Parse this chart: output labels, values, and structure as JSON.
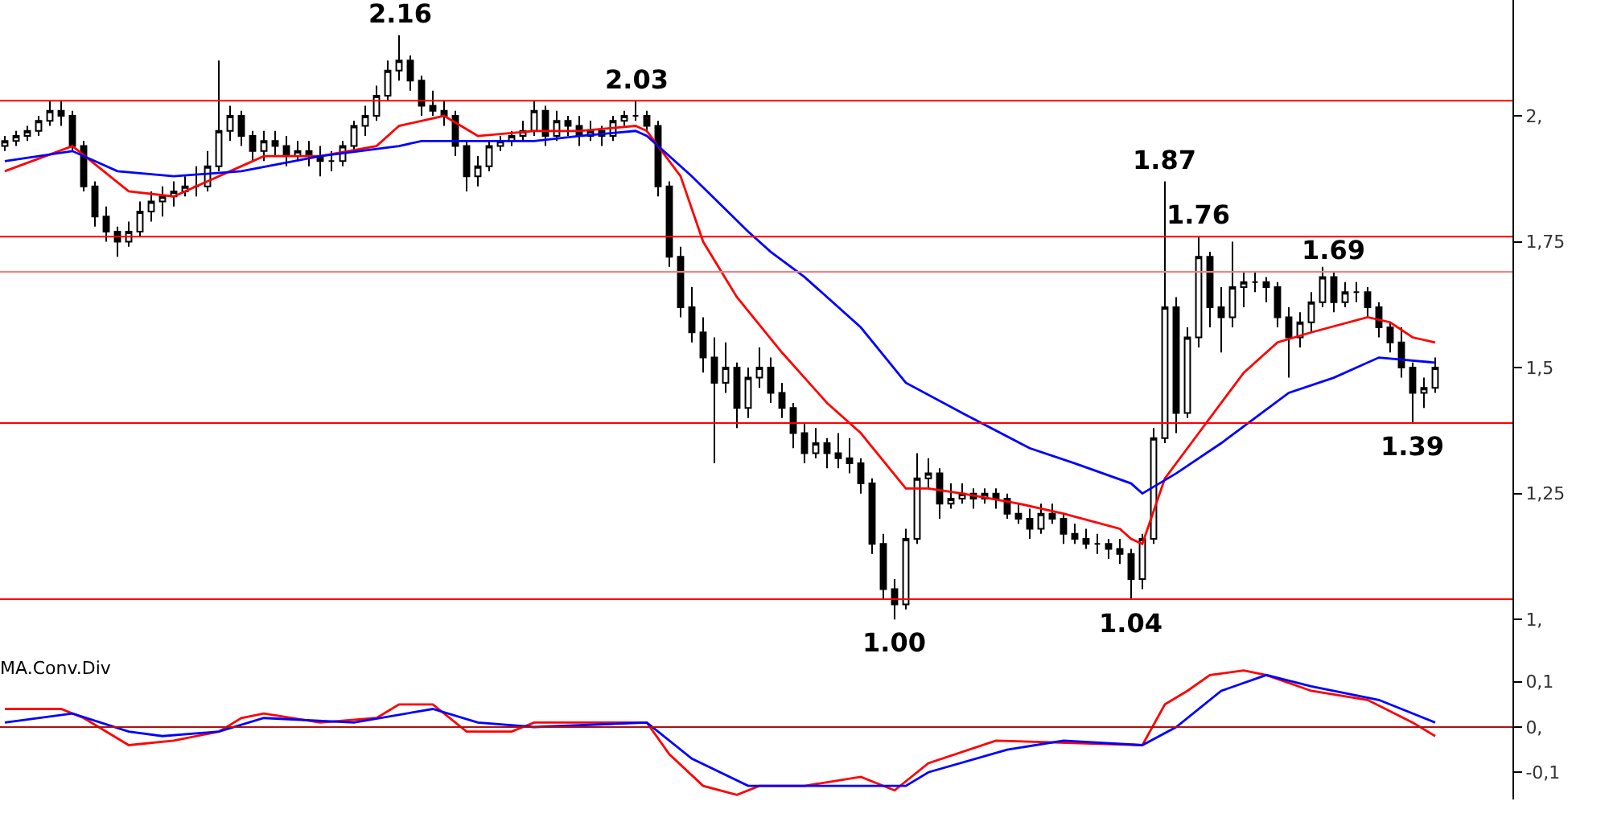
{
  "chart_data": [
    {
      "type": "candlestick",
      "tick_labels": "y",
      "categories": [
        null,
        null,
        null,
        null,
        null,
        null,
        null,
        null,
        null,
        null,
        null,
        null,
        null,
        null,
        null,
        null,
        null,
        null,
        null,
        null,
        null,
        null,
        null,
        null,
        null,
        null,
        null,
        null,
        null,
        null,
        null,
        null,
        null,
        null,
        null,
        null,
        null,
        null,
        null,
        null,
        null,
        null,
        null,
        null,
        null,
        null,
        null,
        null,
        null,
        null,
        null,
        null,
        null,
        null,
        null,
        null,
        null,
        null,
        null,
        null,
        null,
        null,
        null,
        null,
        null,
        null,
        null,
        null,
        null,
        null,
        null,
        null,
        null,
        null,
        null,
        null,
        null,
        null,
        null,
        null,
        null,
        null,
        null,
        null,
        null,
        null,
        null,
        null,
        null,
        null,
        null,
        null,
        null,
        null,
        null,
        null,
        null,
        null,
        null,
        null,
        null,
        null,
        null,
        null,
        null,
        null,
        null,
        null,
        null,
        null,
        null,
        null,
        null,
        null,
        null,
        null,
        null,
        null,
        null,
        null,
        null,
        null,
        null,
        null,
        null,
        null,
        null,
        null
      ],
      "ohlc": [
        [
          1.94,
          1.96,
          1.93,
          1.95
        ],
        [
          1.95,
          1.97,
          1.94,
          1.96
        ],
        [
          1.96,
          1.98,
          1.95,
          1.97
        ],
        [
          1.97,
          2.0,
          1.96,
          1.99
        ],
        [
          1.99,
          2.03,
          1.98,
          2.01
        ],
        [
          2.01,
          2.03,
          1.98,
          2.0
        ],
        [
          2.0,
          2.01,
          1.93,
          1.94
        ],
        [
          1.94,
          1.95,
          1.85,
          1.86
        ],
        [
          1.86,
          1.87,
          1.78,
          1.8
        ],
        [
          1.8,
          1.82,
          1.75,
          1.77
        ],
        [
          1.77,
          1.78,
          1.72,
          1.75
        ],
        [
          1.75,
          1.79,
          1.74,
          1.77
        ],
        [
          1.77,
          1.83,
          1.76,
          1.81
        ],
        [
          1.81,
          1.85,
          1.79,
          1.83
        ],
        [
          1.83,
          1.86,
          1.8,
          1.84
        ],
        [
          1.84,
          1.87,
          1.82,
          1.85
        ],
        [
          1.85,
          1.88,
          1.84,
          1.86
        ],
        [
          1.86,
          1.9,
          1.84,
          1.86
        ],
        [
          1.86,
          1.93,
          1.85,
          1.9
        ],
        [
          1.9,
          2.11,
          1.89,
          1.97
        ],
        [
          1.97,
          2.02,
          1.95,
          2.0
        ],
        [
          2.0,
          2.01,
          1.94,
          1.96
        ],
        [
          1.96,
          1.97,
          1.91,
          1.93
        ],
        [
          1.93,
          1.97,
          1.91,
          1.95
        ],
        [
          1.95,
          1.97,
          1.92,
          1.94
        ],
        [
          1.94,
          1.96,
          1.9,
          1.92
        ],
        [
          1.92,
          1.95,
          1.91,
          1.93
        ],
        [
          1.93,
          1.95,
          1.9,
          1.92
        ],
        [
          1.92,
          1.94,
          1.88,
          1.91
        ],
        [
          1.91,
          1.93,
          1.89,
          1.91
        ],
        [
          1.91,
          1.95,
          1.9,
          1.94
        ],
        [
          1.94,
          1.99,
          1.93,
          1.98
        ],
        [
          1.98,
          2.02,
          1.96,
          2.0
        ],
        [
          2.0,
          2.06,
          1.99,
          2.04
        ],
        [
          2.04,
          2.11,
          2.03,
          2.09
        ],
        [
          2.09,
          2.16,
          2.07,
          2.11
        ],
        [
          2.11,
          2.12,
          2.05,
          2.07
        ],
        [
          2.07,
          2.08,
          2.0,
          2.02
        ],
        [
          2.02,
          2.05,
          2.0,
          2.01
        ],
        [
          2.01,
          2.03,
          1.98,
          2.0
        ],
        [
          2.0,
          2.01,
          1.92,
          1.94
        ],
        [
          1.94,
          1.95,
          1.85,
          1.88
        ],
        [
          1.88,
          1.92,
          1.86,
          1.9
        ],
        [
          1.9,
          1.95,
          1.89,
          1.94
        ],
        [
          1.94,
          1.96,
          1.93,
          1.95
        ],
        [
          1.95,
          1.97,
          1.94,
          1.96
        ],
        [
          1.96,
          1.99,
          1.95,
          1.97
        ],
        [
          1.97,
          2.03,
          1.96,
          2.01
        ],
        [
          2.01,
          2.02,
          1.94,
          1.96
        ],
        [
          1.96,
          2.01,
          1.95,
          1.99
        ],
        [
          1.99,
          2.0,
          1.96,
          1.98
        ],
        [
          1.98,
          2.0,
          1.94,
          1.96
        ],
        [
          1.96,
          1.99,
          1.95,
          1.97
        ],
        [
          1.97,
          1.98,
          1.94,
          1.96
        ],
        [
          1.96,
          2.0,
          1.95,
          1.99
        ],
        [
          1.99,
          2.01,
          1.98,
          2.0
        ],
        [
          2.0,
          2.03,
          1.99,
          2.0
        ],
        [
          2.0,
          2.01,
          1.97,
          1.98
        ],
        [
          1.98,
          1.99,
          1.84,
          1.86
        ],
        [
          1.86,
          1.87,
          1.7,
          1.72
        ],
        [
          1.72,
          1.74,
          1.6,
          1.62
        ],
        [
          1.62,
          1.66,
          1.55,
          1.57
        ],
        [
          1.57,
          1.6,
          1.49,
          1.52
        ],
        [
          1.52,
          1.56,
          1.31,
          1.47
        ],
        [
          1.47,
          1.55,
          1.45,
          1.5
        ],
        [
          1.5,
          1.51,
          1.38,
          1.42
        ],
        [
          1.42,
          1.5,
          1.4,
          1.48
        ],
        [
          1.48,
          1.54,
          1.46,
          1.5
        ],
        [
          1.5,
          1.52,
          1.43,
          1.45
        ],
        [
          1.45,
          1.47,
          1.4,
          1.42
        ],
        [
          1.42,
          1.43,
          1.34,
          1.37
        ],
        [
          1.37,
          1.39,
          1.31,
          1.33
        ],
        [
          1.33,
          1.38,
          1.32,
          1.35
        ],
        [
          1.35,
          1.36,
          1.3,
          1.33
        ],
        [
          1.33,
          1.37,
          1.3,
          1.32
        ],
        [
          1.32,
          1.36,
          1.29,
          1.31
        ],
        [
          1.31,
          1.32,
          1.25,
          1.27
        ],
        [
          1.27,
          1.28,
          1.13,
          1.15
        ],
        [
          1.15,
          1.17,
          1.04,
          1.06
        ],
        [
          1.06,
          1.08,
          1.0,
          1.03
        ],
        [
          1.03,
          1.18,
          1.02,
          1.16
        ],
        [
          1.16,
          1.33,
          1.15,
          1.28
        ],
        [
          1.28,
          1.32,
          1.26,
          1.29
        ],
        [
          1.29,
          1.3,
          1.2,
          1.23
        ],
        [
          1.23,
          1.27,
          1.22,
          1.24
        ],
        [
          1.24,
          1.27,
          1.23,
          1.25
        ],
        [
          1.25,
          1.26,
          1.22,
          1.24
        ],
        [
          1.24,
          1.26,
          1.23,
          1.25
        ],
        [
          1.25,
          1.26,
          1.22,
          1.24
        ],
        [
          1.24,
          1.25,
          1.2,
          1.21
        ],
        [
          1.21,
          1.23,
          1.19,
          1.2
        ],
        [
          1.2,
          1.22,
          1.16,
          1.18
        ],
        [
          1.18,
          1.23,
          1.17,
          1.21
        ],
        [
          1.21,
          1.23,
          1.19,
          1.2
        ],
        [
          1.2,
          1.21,
          1.15,
          1.17
        ],
        [
          1.17,
          1.19,
          1.15,
          1.16
        ],
        [
          1.16,
          1.18,
          1.14,
          1.15
        ],
        [
          1.15,
          1.17,
          1.13,
          1.15
        ],
        [
          1.15,
          1.16,
          1.12,
          1.14
        ],
        [
          1.14,
          1.16,
          1.11,
          1.13
        ],
        [
          1.13,
          1.14,
          1.04,
          1.08
        ],
        [
          1.08,
          1.17,
          1.06,
          1.16
        ],
        [
          1.16,
          1.38,
          1.15,
          1.36
        ],
        [
          1.36,
          1.87,
          1.35,
          1.62
        ],
        [
          1.62,
          1.64,
          1.37,
          1.41
        ],
        [
          1.41,
          1.58,
          1.4,
          1.56
        ],
        [
          1.56,
          1.76,
          1.54,
          1.72
        ],
        [
          1.72,
          1.73,
          1.58,
          1.62
        ],
        [
          1.62,
          1.66,
          1.53,
          1.6
        ],
        [
          1.6,
          1.75,
          1.58,
          1.66
        ],
        [
          1.66,
          1.69,
          1.62,
          1.67
        ],
        [
          1.67,
          1.69,
          1.65,
          1.67
        ],
        [
          1.67,
          1.68,
          1.63,
          1.66
        ],
        [
          1.66,
          1.67,
          1.58,
          1.6
        ],
        [
          1.6,
          1.62,
          1.48,
          1.56
        ],
        [
          1.56,
          1.61,
          1.54,
          1.59
        ],
        [
          1.59,
          1.65,
          1.57,
          1.63
        ],
        [
          1.63,
          1.7,
          1.62,
          1.68
        ],
        [
          1.68,
          1.69,
          1.61,
          1.63
        ],
        [
          1.63,
          1.67,
          1.62,
          1.65
        ],
        [
          1.65,
          1.67,
          1.63,
          1.65
        ],
        [
          1.65,
          1.66,
          1.6,
          1.62
        ],
        [
          1.62,
          1.63,
          1.56,
          1.58
        ],
        [
          1.58,
          1.59,
          1.53,
          1.55
        ],
        [
          1.55,
          1.58,
          1.48,
          1.5
        ],
        [
          1.5,
          1.51,
          1.39,
          1.45
        ],
        [
          1.45,
          1.48,
          1.42,
          1.46
        ],
        [
          1.46,
          1.52,
          1.45,
          1.5
        ]
      ],
      "series": [
        {
          "type": "line",
          "color": "#ff0000",
          "values": [
            1.89,
            null,
            null,
            null,
            null,
            null,
            1.94,
            null,
            null,
            null,
            null,
            1.85,
            null,
            null,
            null,
            1.84,
            null,
            null,
            null,
            null,
            1.89,
            null,
            null,
            1.92,
            null,
            null,
            null,
            null,
            1.92,
            null,
            null,
            null,
            null,
            1.94,
            null,
            1.98,
            null,
            null,
            null,
            2.0,
            null,
            null,
            1.96,
            null,
            null,
            null,
            null,
            1.97,
            null,
            null,
            null,
            1.97,
            null,
            null,
            null,
            null,
            1.98,
            1.97,
            null,
            null,
            1.88,
            null,
            1.75,
            null,
            null,
            1.64,
            null,
            null,
            null,
            1.53,
            null,
            null,
            null,
            1.43,
            null,
            null,
            1.37,
            null,
            null,
            null,
            1.26,
            null,
            1.26,
            null,
            null,
            1.25,
            null,
            null,
            null,
            null,
            1.23,
            null,
            null,
            null,
            1.21,
            null,
            null,
            null,
            null,
            1.18,
            1.16,
            1.15,
            null,
            1.28,
            null,
            null,
            1.37,
            null,
            null,
            null,
            1.49,
            null,
            null,
            1.55,
            null,
            null,
            1.57,
            null,
            null,
            null,
            null,
            1.6,
            null,
            1.59,
            null,
            1.56,
            null,
            1.55
          ]
        },
        {
          "type": "line",
          "color": "#0000ff",
          "values": [
            1.91,
            null,
            null,
            null,
            null,
            null,
            1.93,
            null,
            null,
            null,
            1.89,
            null,
            null,
            null,
            null,
            1.88,
            null,
            null,
            null,
            null,
            null,
            1.89,
            null,
            null,
            null,
            null,
            null,
            null,
            1.92,
            null,
            null,
            null,
            null,
            null,
            null,
            1.94,
            null,
            1.95,
            null,
            null,
            null,
            null,
            1.95,
            null,
            null,
            null,
            null,
            1.95,
            null,
            null,
            null,
            1.96,
            null,
            null,
            null,
            null,
            1.97,
            1.96,
            null,
            null,
            null,
            1.88,
            null,
            null,
            null,
            null,
            1.77,
            null,
            1.73,
            null,
            null,
            1.68,
            null,
            null,
            null,
            null,
            1.58,
            null,
            null,
            null,
            1.47,
            null,
            null,
            null,
            null,
            1.41,
            null,
            null,
            null,
            null,
            null,
            1.34,
            null,
            null,
            null,
            1.31,
            null,
            null,
            null,
            null,
            1.27,
            1.25,
            null,
            null,
            1.29,
            null,
            null,
            null,
            1.35,
            null,
            null,
            null,
            null,
            null,
            1.45,
            null,
            null,
            null,
            1.48,
            null,
            null,
            null,
            1.52,
            null,
            null,
            null,
            null,
            1.51
          ]
        }
      ],
      "ylim": [
        0.93,
        2.23
      ],
      "yticks": [
        {
          "value": 1,
          "label": "1,"
        },
        {
          "value": 1.25,
          "label": "1,25"
        },
        {
          "value": 1.5,
          "label": "1,5"
        },
        {
          "value": 1.75,
          "label": "1,75"
        },
        {
          "value": 2,
          "label": "2,"
        }
      ],
      "ref_lines": [
        {
          "axis": "y",
          "value": 2.03,
          "label": "2.03",
          "color": "#ff0000"
        },
        {
          "axis": "y",
          "value": 1.76,
          "label": "1.76",
          "color": "#ff0000"
        },
        {
          "axis": "y",
          "value": 1.69,
          "label": "1.69",
          "color": "#f08080"
        },
        {
          "axis": "y",
          "value": 1.39,
          "label": "1.39",
          "color": "#ff0000"
        },
        {
          "axis": "y",
          "value": 1.04,
          "label": "1.04",
          "color": "#ff0000"
        }
      ],
      "annotations": [
        {
          "text": "2.16",
          "y": 2.16
        },
        {
          "text": "1.87",
          "y": 1.87
        },
        {
          "text": "1.00",
          "y": 1.0
        }
      ]
    },
    {
      "type": "line",
      "title": "MA.Conv.Div",
      "tick_labels": "y",
      "categories": [
        null,
        null,
        null,
        null,
        null,
        null,
        null,
        null,
        null,
        null,
        null,
        null,
        null,
        null,
        null,
        null,
        null,
        null,
        null,
        null,
        null,
        null,
        null,
        null,
        null,
        null,
        null,
        null,
        null,
        null,
        null,
        null,
        null,
        null,
        null,
        null,
        null,
        null,
        null,
        null,
        null,
        null,
        null,
        null,
        null,
        null,
        null,
        null,
        null,
        null,
        null,
        null,
        null,
        null,
        null,
        null,
        null,
        null,
        null,
        null,
        null,
        null,
        null,
        null,
        null,
        null,
        null,
        null,
        null,
        null,
        null,
        null,
        null,
        null,
        null,
        null,
        null,
        null,
        null,
        null,
        null,
        null,
        null,
        null,
        null,
        null,
        null,
        null,
        null,
        null,
        null,
        null,
        null,
        null,
        null,
        null,
        null,
        null,
        null,
        null,
        null,
        null,
        null,
        null,
        null,
        null,
        null,
        null,
        null,
        null,
        null,
        null,
        null,
        null,
        null,
        null,
        null,
        null,
        null,
        null,
        null,
        null,
        null,
        null,
        null,
        null,
        null,
        null
      ],
      "series": [
        {
          "color": "#ff0000",
          "values": [
            0.04,
            null,
            null,
            null,
            null,
            0.04,
            null,
            0.02,
            null,
            null,
            null,
            -0.04,
            null,
            null,
            null,
            -0.03,
            null,
            null,
            null,
            -0.01,
            null,
            0.02,
            null,
            0.03,
            null,
            null,
            null,
            null,
            0.01,
            null,
            null,
            null,
            null,
            0.02,
            null,
            0.05,
            null,
            null,
            0.05,
            null,
            null,
            -0.01,
            null,
            null,
            null,
            -0.01,
            null,
            0.01,
            null,
            null,
            null,
            null,
            null,
            null,
            null,
            null,
            null,
            0.01,
            null,
            -0.06,
            null,
            null,
            -0.13,
            null,
            null,
            -0.15,
            null,
            -0.13,
            null,
            null,
            null,
            -0.13,
            null,
            null,
            null,
            null,
            -0.11,
            null,
            null,
            -0.14,
            null,
            null,
            -0.08,
            null,
            null,
            null,
            null,
            null,
            -0.03,
            null,
            null,
            null,
            null,
            null,
            null,
            null,
            null,
            null,
            null,
            null,
            null,
            -0.04,
            null,
            0.05,
            null,
            0.08,
            null,
            0.115,
            null,
            null,
            0.125,
            null,
            0.115,
            null,
            null,
            null,
            0.08,
            null,
            null,
            null,
            null,
            0.06,
            null,
            null,
            null,
            0.01,
            null,
            -0.02
          ]
        },
        {
          "color": "#0000ff",
          "values": [
            0.01,
            null,
            null,
            null,
            null,
            null,
            0.03,
            null,
            null,
            null,
            null,
            -0.01,
            null,
            null,
            -0.02,
            null,
            null,
            null,
            null,
            -0.01,
            null,
            null,
            null,
            0.02,
            null,
            null,
            null,
            null,
            null,
            null,
            null,
            0.01,
            null,
            null,
            null,
            null,
            null,
            null,
            0.04,
            null,
            null,
            null,
            0.01,
            null,
            null,
            null,
            null,
            0,
            null,
            null,
            null,
            null,
            null,
            null,
            null,
            null,
            null,
            0.01,
            null,
            null,
            null,
            -0.07,
            null,
            null,
            null,
            null,
            -0.13,
            null,
            null,
            null,
            null,
            -0.13,
            null,
            null,
            null,
            null,
            null,
            null,
            null,
            null,
            -0.13,
            null,
            -0.1,
            null,
            null,
            null,
            null,
            null,
            null,
            -0.05,
            null,
            null,
            null,
            null,
            -0.03,
            null,
            null,
            null,
            null,
            null,
            null,
            -0.04,
            null,
            null,
            0,
            null,
            null,
            null,
            0.08,
            null,
            null,
            null,
            0.115,
            null,
            null,
            null,
            0.09,
            null,
            null,
            null,
            null,
            null,
            0.06,
            null,
            null,
            null,
            null,
            0.01
          ]
        }
      ],
      "ylim": [
        -0.16,
        0.16
      ],
      "yticks": [
        {
          "value": 0.1,
          "label": "0,1"
        },
        {
          "value": 0,
          "label": "0,"
        },
        {
          "value": -0.1,
          "label": "-0,1"
        }
      ],
      "ref_lines": [
        {
          "axis": "y",
          "value": 0,
          "color": "#b01010"
        }
      ]
    }
  ]
}
